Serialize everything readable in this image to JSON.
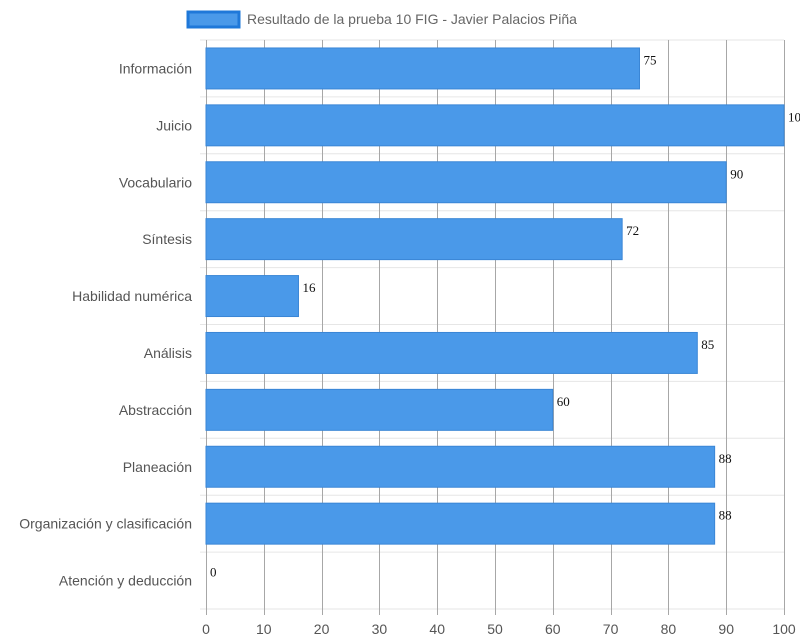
{
  "chart_data": {
    "type": "bar",
    "orientation": "horizontal",
    "title": "",
    "xlabel": "",
    "ylabel": "",
    "categories": [
      "Información",
      "Juicio",
      "Vocabulario",
      "Síntesis",
      "Habilidad numérica",
      "Análisis",
      "Abstracción",
      "Planeación",
      "Organización y clasificación",
      "Atención y deducción"
    ],
    "series": [
      {
        "name": "Resultado de la prueba 10 FIG - Javier Palacios Piña",
        "values": [
          75,
          100,
          90,
          72,
          16,
          85,
          60,
          88,
          88,
          0
        ]
      }
    ],
    "xlim": [
      0,
      100
    ],
    "x_ticks": [
      0,
      10,
      20,
      30,
      40,
      50,
      60,
      70,
      80,
      90,
      100
    ],
    "grid": true,
    "legend_position": "top",
    "data_labels": true,
    "colors": {
      "bar_fill": "#4a99e9",
      "bar_stroke": "#3a86d6",
      "legend_swatch_fill": "#4a99e9",
      "legend_swatch_stroke": "#1f78d9",
      "vertical_grid": "#a7a7a7",
      "horizontal_grid": "#e6e6e6"
    }
  }
}
